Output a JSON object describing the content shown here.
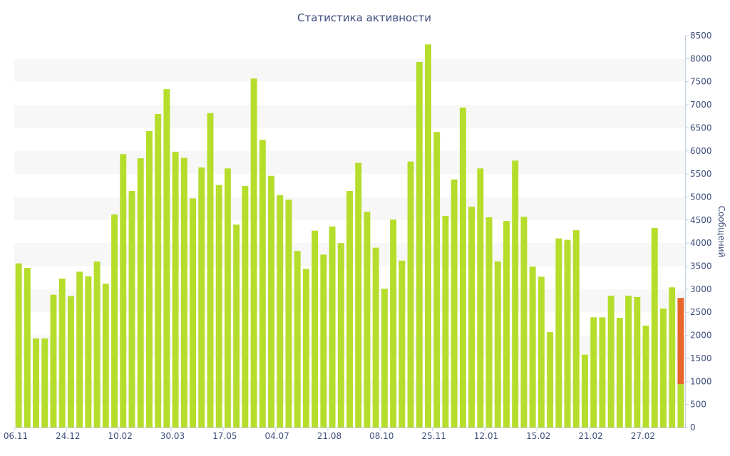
{
  "chart_data": {
    "type": "bar",
    "title": "Статистика активности",
    "xlabel": "",
    "ylabel": "Сообщений",
    "ylim": [
      0,
      8500
    ],
    "y_ticks": [
      0,
      500,
      1000,
      1500,
      2000,
      2500,
      3000,
      3500,
      4000,
      4500,
      5000,
      5500,
      6000,
      6500,
      7000,
      7500,
      8000,
      8500
    ],
    "y_axis_side": "right",
    "grid": "alternating horizontal bands",
    "legend": "none",
    "x_tick_labels": [
      {
        "index": 0,
        "label": "06.11"
      },
      {
        "index": 6,
        "label": "24.12"
      },
      {
        "index": 12,
        "label": "10.02"
      },
      {
        "index": 18,
        "label": "30.03"
      },
      {
        "index": 24,
        "label": "17.05"
      },
      {
        "index": 30,
        "label": "04.07"
      },
      {
        "index": 36,
        "label": "21.08"
      },
      {
        "index": 42,
        "label": "08.10"
      },
      {
        "index": 48,
        "label": "25.11"
      },
      {
        "index": 54,
        "label": "12.01"
      },
      {
        "index": 60,
        "label": "15.02"
      },
      {
        "index": 66,
        "label": "21.02"
      },
      {
        "index": 72,
        "label": "27.02"
      }
    ],
    "series": [
      {
        "color": "#b5dd2b",
        "values": [
          3560,
          3460,
          1930,
          1930,
          2880,
          3230,
          2850,
          3380,
          3280,
          3600,
          3120,
          4620,
          5930,
          5130,
          5840,
          6430,
          6800,
          7340,
          5980,
          5850,
          4970,
          5640,
          6820,
          5260,
          5620,
          4400,
          5240,
          7570,
          6240,
          5460,
          5040,
          4940,
          3830,
          3440,
          4270,
          3750,
          4360,
          4000,
          5130,
          5740,
          4680,
          3900,
          3010,
          4510,
          3620,
          5770,
          7930,
          8310,
          6410,
          4590,
          5380,
          6940,
          4790,
          5620,
          4560,
          3600,
          4480,
          5790,
          4570,
          3490,
          3270,
          2070,
          4100,
          4070,
          4280,
          1580,
          2390,
          2390,
          2860,
          2380,
          2860,
          2830,
          2210,
          4330,
          2580,
          3040,
          940
        ]
      },
      {
        "color": "#e8652b",
        "stacked_on_index": 76,
        "base": 940,
        "top": 2810
      }
    ]
  }
}
